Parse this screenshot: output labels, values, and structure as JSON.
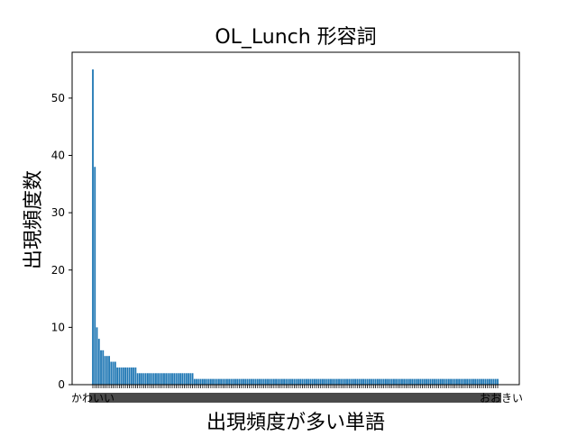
{
  "chart_data": {
    "type": "bar",
    "title": "OL_Lunch 形容詞",
    "xlabel": "出現頻度が多い単語",
    "ylabel": "出現頻度数",
    "ylim": [
      0,
      58
    ],
    "yticks": [
      0,
      10,
      20,
      30,
      40,
      50
    ],
    "bar_color": "#1f77b4",
    "grid": false,
    "first_category_label": "かわいい",
    "last_category_label": "おおきい",
    "categories_note": "x tick labels overlap and are illegible except first/last",
    "values": [
      55,
      38,
      10,
      8,
      6,
      6,
      5,
      5,
      5,
      4,
      4,
      4,
      3,
      3,
      3,
      3,
      3,
      3,
      3,
      3,
      3,
      3,
      2,
      2,
      2,
      2,
      2,
      2,
      2,
      2,
      2,
      2,
      2,
      2,
      2,
      2,
      2,
      2,
      2,
      2,
      2,
      2,
      2,
      2,
      2,
      2,
      2,
      2,
      2,
      2,
      1,
      1,
      1,
      1,
      1,
      1,
      1,
      1,
      1,
      1,
      1,
      1,
      1,
      1,
      1,
      1,
      1,
      1,
      1,
      1,
      1,
      1,
      1,
      1,
      1,
      1,
      1,
      1,
      1,
      1,
      1,
      1,
      1,
      1,
      1,
      1,
      1,
      1,
      1,
      1,
      1,
      1,
      1,
      1,
      1,
      1,
      1,
      1,
      1,
      1,
      1,
      1,
      1,
      1,
      1,
      1,
      1,
      1,
      1,
      1,
      1,
      1,
      1,
      1,
      1,
      1,
      1,
      1,
      1,
      1,
      1,
      1,
      1,
      1,
      1,
      1,
      1,
      1,
      1,
      1,
      1,
      1,
      1,
      1,
      1,
      1,
      1,
      1,
      1,
      1,
      1,
      1,
      1,
      1,
      1,
      1,
      1,
      1,
      1,
      1,
      1,
      1,
      1,
      1,
      1,
      1,
      1,
      1,
      1,
      1,
      1,
      1,
      1,
      1,
      1,
      1,
      1,
      1,
      1,
      1,
      1,
      1,
      1,
      1,
      1,
      1,
      1,
      1,
      1,
      1,
      1,
      1,
      1,
      1,
      1,
      1,
      1,
      1,
      1,
      1,
      1,
      1,
      1,
      1,
      1,
      1,
      1,
      1,
      1,
      1
    ]
  }
}
